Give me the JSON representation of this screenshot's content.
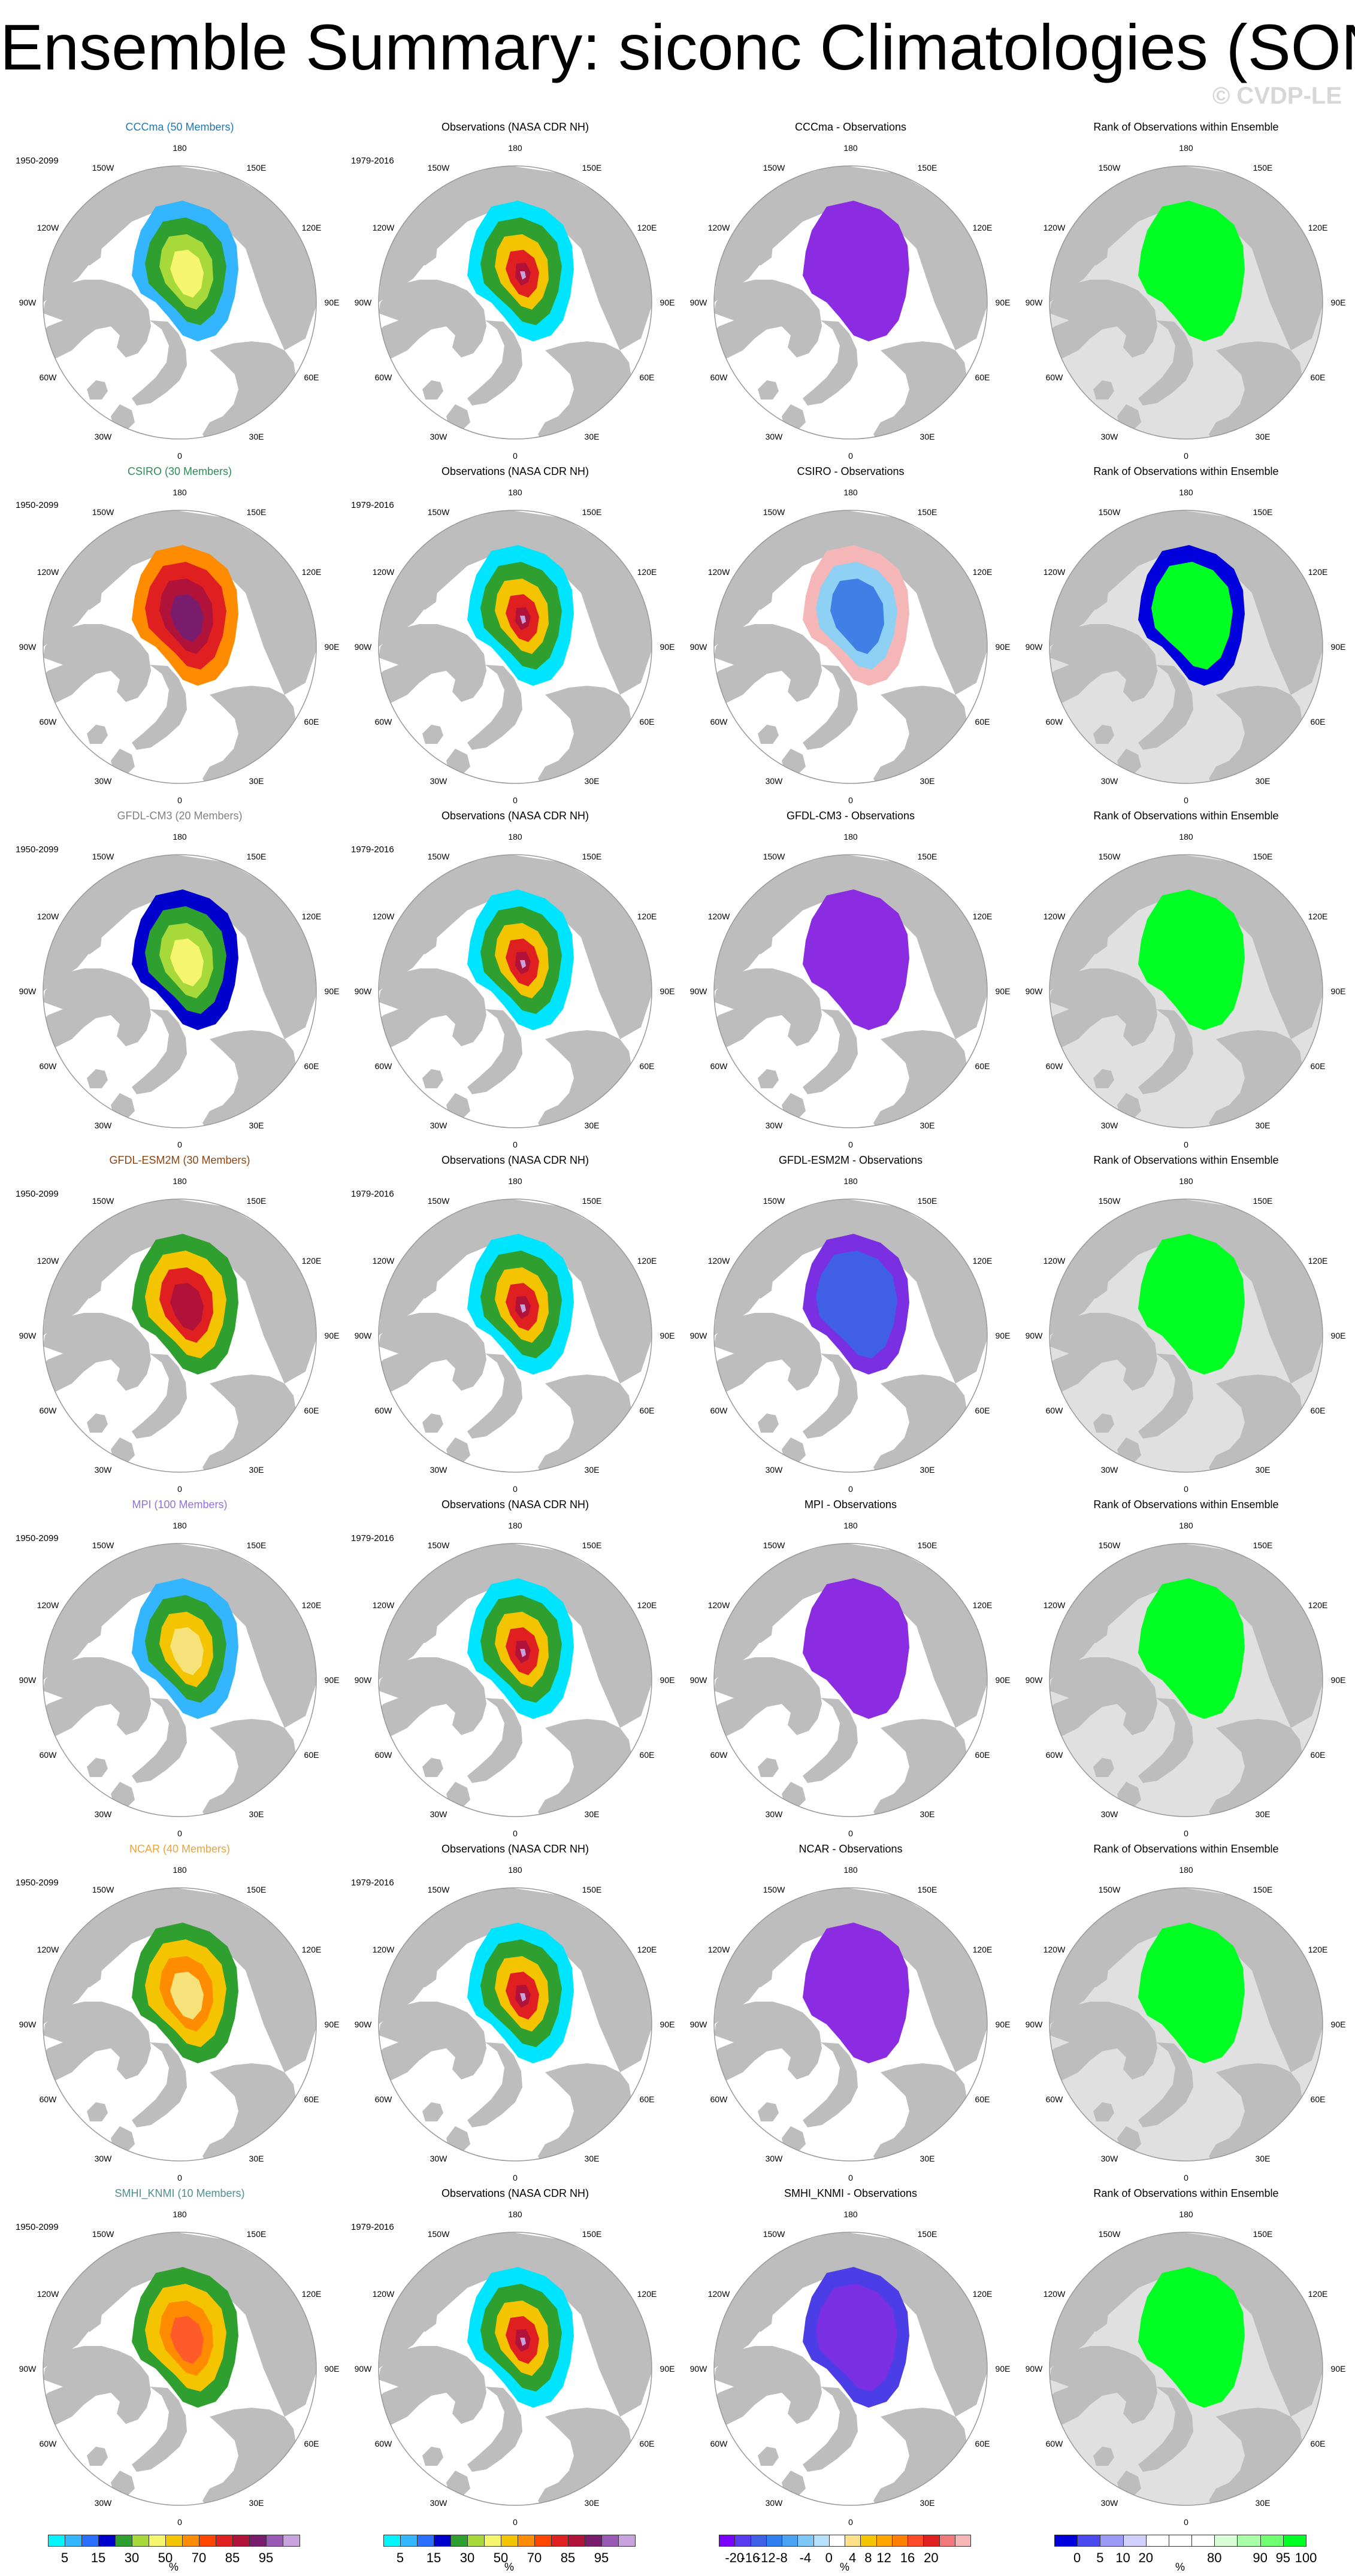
{
  "figure": {
    "title": "Ensemble Summary: siconc Climatologies (SON)",
    "watermark": "© CVDP-LE"
  },
  "palette": {
    "land": "#bdbdbd",
    "ocean": "#ffffff",
    "rank_background": "#e0e0e0",
    "grid_circle": "#999999"
  },
  "map_labels": {
    "lon_180": "180",
    "lon_150W": "150W",
    "lon_150E": "150E",
    "lon_120W": "120W",
    "lon_120E": "120E",
    "lon_90W": "90W",
    "lon_90E": "90E",
    "lon_60W": "60W",
    "lon_60E": "60E",
    "lon_30W": "30W",
    "lon_30E": "30E",
    "lon_0": "0"
  },
  "rows": [
    {
      "model_title": "CCCma (50 Members)",
      "model_title_color": "#1f77b4",
      "model_period": "1950-2099",
      "obs_title": "Observations (NASA CDR NH)",
      "obs_period": "1979-2016",
      "diff_title": "CCCma - Observations",
      "rank_title": "Rank of Observations within Ensemble",
      "model_fill": [
        "#33b5ff",
        "#2fa02f",
        "#a8d93a",
        "#f5f56e"
      ],
      "diff_fill": [
        "#8b2be2"
      ],
      "rank_fill": [
        "#00ff22"
      ]
    },
    {
      "model_title": "CSIRO (30 Members)",
      "model_title_color": "#2e8b57",
      "model_period": "1950-2099",
      "obs_title": "Observations (NASA CDR NH)",
      "obs_period": "1979-2016",
      "diff_title": "CSIRO - Observations",
      "rank_title": "Rank of Observations within Ensemble",
      "model_fill": [
        "#ff8c00",
        "#e02020",
        "#b0123a",
        "#7a1c6e"
      ],
      "diff_fill": [
        "#f4b6b6",
        "#8fd0f5",
        "#3f7fe6"
      ],
      "rank_fill": [
        "#0000dd",
        "#00ff22"
      ]
    },
    {
      "model_title": "GFDL-CM3 (20 Members)",
      "model_title_color": "#808080",
      "model_period": "1950-2099",
      "obs_title": "Observations (NASA CDR NH)",
      "obs_period": "1979-2016",
      "diff_title": "GFDL-CM3 - Observations",
      "rank_title": "Rank of Observations within Ensemble",
      "model_fill": [
        "#0000cc",
        "#2fa02f",
        "#a8d93a",
        "#f5f56e"
      ],
      "diff_fill": [
        "#8b2be2"
      ],
      "rank_fill": [
        "#00ff22"
      ]
    },
    {
      "model_title": "GFDL-ESM2M (30 Members)",
      "model_title_color": "#8b4513",
      "model_period": "1950-2099",
      "obs_title": "Observations (NASA CDR NH)",
      "obs_period": "1979-2016",
      "diff_title": "GFDL-ESM2M - Observations",
      "rank_title": "Rank of Observations within Ensemble",
      "model_fill": [
        "#2fa02f",
        "#f5c400",
        "#e02020",
        "#b0123a"
      ],
      "diff_fill": [
        "#7b2fe2",
        "#3f5fe6"
      ],
      "rank_fill": [
        "#00ff22"
      ]
    },
    {
      "model_title": "MPI (100 Members)",
      "model_title_color": "#9370db",
      "model_period": "1950-2099",
      "obs_title": "Observations (NASA CDR NH)",
      "obs_period": "1979-2016",
      "diff_title": "MPI - Observations",
      "rank_title": "Rank of Observations within Ensemble",
      "model_fill": [
        "#33b5ff",
        "#2fa02f",
        "#f5c400",
        "#f5e27a"
      ],
      "diff_fill": [
        "#8b2be2"
      ],
      "rank_fill": [
        "#00ff22"
      ]
    },
    {
      "model_title": "NCAR (40 Members)",
      "model_title_color": "#e8a33d",
      "model_period": "1950-2099",
      "obs_title": "Observations (NASA CDR NH)",
      "obs_period": "1979-2016",
      "diff_title": "NCAR - Observations",
      "rank_title": "Rank of Observations within Ensemble",
      "model_fill": [
        "#2fa02f",
        "#f5c400",
        "#ff8c00",
        "#f5e27a"
      ],
      "diff_fill": [
        "#8b2be2"
      ],
      "rank_fill": [
        "#00ff22"
      ]
    },
    {
      "model_title": "SMHI_KNMI (10 Members)",
      "model_title_color": "#4f8f8f",
      "model_period": "1950-2099",
      "obs_title": "Observations (NASA CDR NH)",
      "obs_period": "1979-2016",
      "diff_title": "SMHI_KNMI - Observations",
      "rank_title": "Rank of Observations within Ensemble",
      "model_fill": [
        "#2fa02f",
        "#f5c400",
        "#ff8c00",
        "#ff5a2a"
      ],
      "diff_fill": [
        "#4b3ee6",
        "#7b2fe2"
      ],
      "rank_fill": [
        "#00ff22"
      ]
    }
  ],
  "obs_fill": [
    "#00e5ff",
    "#2fa02f",
    "#f5c400",
    "#e02020",
    "#b0123a",
    "#c8a2dc"
  ],
  "colorbars": [
    {
      "id": "siconc",
      "unit": "%",
      "colors": [
        "#00f5ff",
        "#33b5ff",
        "#2a6fff",
        "#0000cc",
        "#2fa02f",
        "#a8d93a",
        "#f5f56e",
        "#f5c400",
        "#ff8c00",
        "#ff4500",
        "#e02020",
        "#b0123a",
        "#7a1c6e",
        "#9b59b6",
        "#c8a2dc"
      ],
      "labels": [
        {
          "text": "5",
          "at": 1
        },
        {
          "text": "15",
          "at": 3
        },
        {
          "text": "30",
          "at": 5
        },
        {
          "text": "50",
          "at": 7
        },
        {
          "text": "70",
          "at": 9
        },
        {
          "text": "85",
          "at": 11
        },
        {
          "text": "95",
          "at": 13
        }
      ]
    },
    {
      "id": "obs",
      "unit": "%",
      "colors": [
        "#00f5ff",
        "#33b5ff",
        "#2a6fff",
        "#0000cc",
        "#2fa02f",
        "#a8d93a",
        "#f5f56e",
        "#f5c400",
        "#ff8c00",
        "#ff4500",
        "#e02020",
        "#b0123a",
        "#7a1c6e",
        "#9b59b6",
        "#c8a2dc"
      ],
      "labels": [
        {
          "text": "5",
          "at": 1
        },
        {
          "text": "15",
          "at": 3
        },
        {
          "text": "30",
          "at": 5
        },
        {
          "text": "50",
          "at": 7
        },
        {
          "text": "70",
          "at": 9
        },
        {
          "text": "85",
          "at": 11
        },
        {
          "text": "95",
          "at": 13
        }
      ]
    },
    {
      "id": "diff",
      "unit": "%",
      "colors": [
        "#7a00ff",
        "#5a3cf0",
        "#3f5fe6",
        "#2f7fee",
        "#4aa3f2",
        "#7fc7f7",
        "#b5e1fa",
        "#ffffff",
        "#ffe08a",
        "#f5c400",
        "#ffa500",
        "#ff7f00",
        "#ff4a2a",
        "#e02020",
        "#f07a7a",
        "#f4b6b6"
      ],
      "labels": [
        {
          "text": "-20",
          "at": 1
        },
        {
          "text": "-16",
          "at": 2
        },
        {
          "text": "-12",
          "at": 3
        },
        {
          "text": "-8",
          "at": 4
        },
        {
          "text": "-4",
          "at": 5.5
        },
        {
          "text": "0",
          "at": 7
        },
        {
          "text": "4",
          "at": 8.5
        },
        {
          "text": "8",
          "at": 9.5
        },
        {
          "text": "12",
          "at": 10.5
        },
        {
          "text": "16",
          "at": 12
        },
        {
          "text": "20",
          "at": 13.5
        }
      ]
    },
    {
      "id": "rank",
      "unit": "%",
      "colors": [
        "#0000dd",
        "#4a4af0",
        "#9a9af5",
        "#d0d0fa",
        "#ffffff",
        "#ffffff",
        "#ffffff",
        "#d9ffd9",
        "#a8ffa8",
        "#70ff70",
        "#00ff22"
      ],
      "labels": [
        {
          "text": "0",
          "at": 1
        },
        {
          "text": "5",
          "at": 2
        },
        {
          "text": "10",
          "at": 3
        },
        {
          "text": "20",
          "at": 4
        },
        {
          "text": "80",
          "at": 7
        },
        {
          "text": "90",
          "at": 9
        },
        {
          "text": "95",
          "at": 10
        },
        {
          "text": "100",
          "at": 11
        }
      ]
    }
  ]
}
